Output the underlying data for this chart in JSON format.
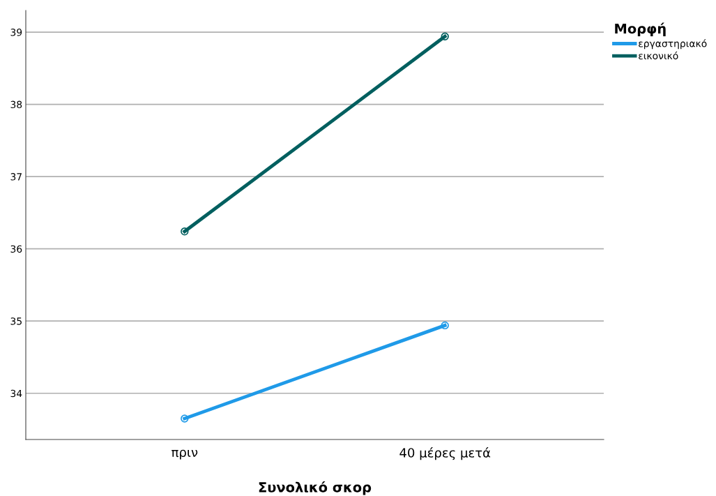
{
  "chart_data": {
    "type": "line",
    "xlabel": "Συνολικό σκορ",
    "categories": [
      "πριν",
      "40 μέρες μετά"
    ],
    "series": [
      {
        "name": "εργαστηριακό",
        "color": "#1f9ae8",
        "values": [
          33.65,
          34.94
        ]
      },
      {
        "name": "εικονικό",
        "color": "#005f5f",
        "values": [
          36.24,
          38.94
        ]
      }
    ],
    "ylim": [
      33.36,
      39.3
    ],
    "yticks": [
      34,
      35,
      36,
      37,
      38,
      39
    ],
    "grid": "y",
    "legend": "top right",
    "legend_title": "Μορφή",
    "marker": "circle",
    "line_style": "solid"
  }
}
